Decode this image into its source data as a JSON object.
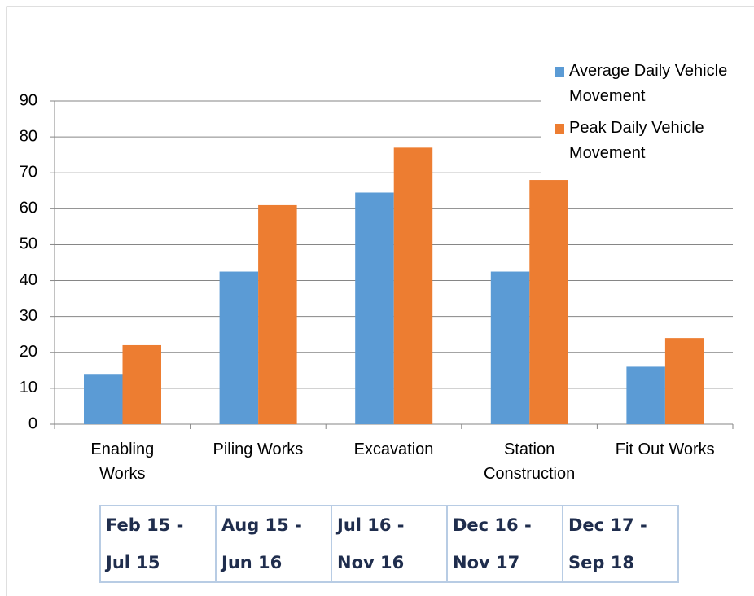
{
  "chart_data": {
    "type": "bar",
    "categories": [
      "Enabling Works",
      "Piling Works",
      "Excavation",
      "Station Construction",
      "Fit Out Works"
    ],
    "series": [
      {
        "name": "Average Daily Vehicle Movement",
        "color": "#5b9bd5",
        "values": [
          14,
          42.5,
          64.5,
          42.5,
          16
        ]
      },
      {
        "name": "Peak Daily Vehicle Movement",
        "color": "#ed7d31",
        "values": [
          22,
          61,
          77,
          68,
          24
        ]
      }
    ],
    "ylim": [
      0,
      90
    ],
    "yticks": [
      0,
      10,
      20,
      30,
      40,
      50,
      60,
      70,
      80,
      90
    ],
    "grid": true,
    "legend": "top-right"
  },
  "table": {
    "rows": [
      [
        "Feb 15 -",
        "Aug 15 -",
        "Jul 16 -",
        "Dec 16 -",
        "Dec 17 -"
      ],
      [
        "Jul 15",
        "Jun 16",
        "Nov 16",
        "Nov 17",
        "Sep 18"
      ]
    ]
  }
}
